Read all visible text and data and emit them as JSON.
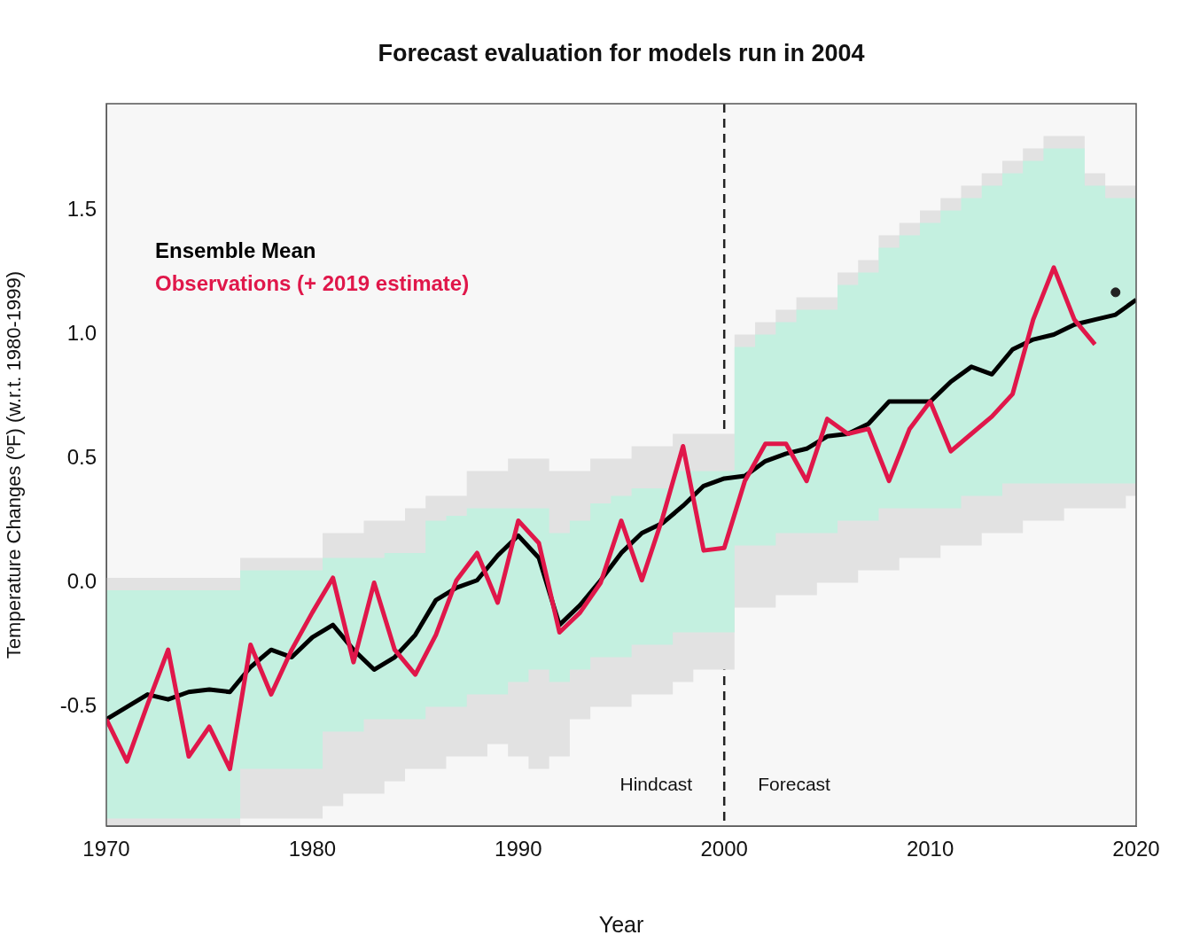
{
  "chart_data": {
    "type": "line",
    "title": "Forecast evaluation for models run in 2004",
    "xlabel": "Year",
    "ylabel": "Temperature Changes (ºF) (w.r.t. 1980-1999)",
    "xlim": [
      1970,
      2020
    ],
    "xticks": [
      1970,
      1980,
      1990,
      2000,
      2010,
      2020
    ],
    "ylim": [
      -0.98,
      1.93
    ],
    "yticks": [
      {
        "value": -0.5,
        "label": "-0.5"
      },
      {
        "value": 0,
        "label": "0.0"
      },
      0.5,
      {
        "value": 1,
        "label": "1.0"
      },
      1.5
    ],
    "grid": false,
    "legend": "top left",
    "marker": "none",
    "line_style": "solid",
    "series": [
      {
        "color": "#e2e2e2",
        "x": [
          1970,
          1971,
          1972,
          1973,
          1974,
          1975,
          1976,
          1977,
          1978,
          1979,
          1980,
          1981,
          1982,
          1983,
          1984,
          1985,
          1986,
          1987,
          1988,
          1989,
          1990,
          1991,
          1992,
          1993,
          1994,
          1995,
          1996,
          1997,
          1998,
          1999,
          2000,
          2001,
          2002,
          2003,
          2004,
          2005,
          2006,
          2007,
          2008,
          2009,
          2010,
          2011,
          2012,
          2013,
          2014,
          2015,
          2016,
          2017,
          2018,
          2019,
          2020
        ],
        "values": [
          null,
          null,
          null,
          null,
          null,
          null,
          null,
          null,
          null,
          null,
          null,
          null,
          null,
          null,
          null,
          null,
          null,
          null,
          null,
          null,
          null,
          null,
          null,
          null,
          null,
          null,
          null,
          null,
          null,
          null,
          null,
          null,
          null,
          null,
          null,
          null,
          null,
          null,
          null,
          null,
          null,
          null,
          null,
          null,
          null,
          null,
          null,
          null,
          null,
          null,
          null
        ],
        "lower": [
          -0.98,
          -0.98,
          -0.98,
          -0.98,
          -0.98,
          -0.98,
          -0.98,
          -0.95,
          -0.95,
          -0.95,
          -0.95,
          -0.9,
          -0.85,
          -0.85,
          -0.8,
          -0.75,
          -0.75,
          -0.7,
          -0.7,
          -0.65,
          -0.7,
          -0.75,
          -0.7,
          -0.55,
          -0.5,
          -0.5,
          -0.45,
          -0.45,
          -0.4,
          -0.35,
          -0.35,
          -0.1,
          -0.1,
          -0.05,
          -0.05,
          0.0,
          0.0,
          0.05,
          0.05,
          0.1,
          0.1,
          0.15,
          0.15,
          0.2,
          0.2,
          0.25,
          0.25,
          0.3,
          0.3,
          0.3,
          0.35
        ],
        "upper": [
          0.02,
          0.02,
          0.02,
          0.02,
          0.02,
          0.02,
          0.02,
          0.1,
          0.1,
          0.1,
          0.1,
          0.2,
          0.2,
          0.25,
          0.25,
          0.3,
          0.35,
          0.35,
          0.45,
          0.45,
          0.5,
          0.5,
          0.45,
          0.45,
          0.5,
          0.5,
          0.55,
          0.55,
          0.6,
          0.6,
          0.6,
          1.0,
          1.05,
          1.1,
          1.15,
          1.15,
          1.25,
          1.3,
          1.4,
          1.45,
          1.5,
          1.55,
          1.6,
          1.65,
          1.7,
          1.75,
          1.8,
          1.8,
          1.65,
          1.6,
          1.6
        ]
      },
      {
        "name": "Ensemble Mean",
        "color": "#000000",
        "x": [
          1970,
          1971,
          1972,
          1973,
          1974,
          1975,
          1976,
          1977,
          1978,
          1979,
          1980,
          1981,
          1982,
          1983,
          1984,
          1985,
          1986,
          1987,
          1988,
          1989,
          1990,
          1991,
          1992,
          1993,
          1994,
          1995,
          1996,
          1997,
          1998,
          1999,
          2000,
          2001,
          2002,
          2003,
          2004,
          2005,
          2006,
          2007,
          2008,
          2009,
          2010,
          2011,
          2012,
          2013,
          2014,
          2015,
          2016,
          2017,
          2018,
          2019,
          2020
        ],
        "values": [
          -0.55,
          -0.5,
          -0.45,
          -0.47,
          -0.44,
          -0.43,
          -0.44,
          -0.34,
          -0.27,
          -0.3,
          -0.22,
          -0.17,
          -0.27,
          -0.35,
          -0.3,
          -0.21,
          -0.07,
          -0.02,
          0.01,
          0.11,
          0.19,
          0.1,
          -0.17,
          -0.09,
          0.01,
          0.12,
          0.2,
          0.24,
          0.31,
          0.39,
          0.42,
          0.43,
          0.49,
          0.52,
          0.54,
          0.59,
          0.6,
          0.64,
          0.73,
          0.73,
          0.73,
          0.81,
          0.87,
          0.84,
          0.94,
          0.98,
          1.0,
          1.04,
          1.06,
          1.08,
          1.14
        ],
        "lower": [
          -0.95,
          -0.95,
          -0.95,
          -0.95,
          -0.95,
          -0.95,
          -0.95,
          -0.75,
          -0.75,
          -0.75,
          -0.75,
          -0.6,
          -0.6,
          -0.55,
          -0.55,
          -0.55,
          -0.5,
          -0.5,
          -0.45,
          -0.45,
          -0.4,
          -0.35,
          -0.4,
          -0.35,
          -0.3,
          -0.3,
          -0.25,
          -0.25,
          -0.2,
          -0.2,
          -0.2,
          0.15,
          0.15,
          0.2,
          0.2,
          0.2,
          0.25,
          0.25,
          0.3,
          0.3,
          0.3,
          0.3,
          0.35,
          0.35,
          0.4,
          0.4,
          0.4,
          0.4,
          0.4,
          0.4,
          0.4
        ],
        "upper": [
          -0.03,
          -0.03,
          -0.03,
          -0.03,
          -0.03,
          -0.03,
          -0.03,
          0.05,
          0.05,
          0.05,
          0.05,
          0.1,
          0.1,
          0.1,
          0.12,
          0.12,
          0.25,
          0.27,
          0.3,
          0.3,
          0.3,
          0.3,
          0.2,
          0.25,
          0.32,
          0.35,
          0.38,
          0.38,
          0.45,
          0.45,
          0.45,
          0.95,
          1.0,
          1.05,
          1.1,
          1.1,
          1.2,
          1.25,
          1.35,
          1.4,
          1.45,
          1.5,
          1.55,
          1.6,
          1.65,
          1.7,
          1.75,
          1.75,
          1.6,
          1.55,
          1.55
        ]
      },
      {
        "name": "Observations (+ 2019 estimate)",
        "color": "#e0174a",
        "x": [
          1970,
          1971,
          1972,
          1973,
          1974,
          1975,
          1976,
          1977,
          1978,
          1979,
          1980,
          1981,
          1982,
          1983,
          1984,
          1985,
          1986,
          1987,
          1988,
          1989,
          1990,
          1991,
          1992,
          1993,
          1994,
          1995,
          1996,
          1997,
          1998,
          1999,
          2000,
          2001,
          2002,
          2003,
          2004,
          2005,
          2006,
          2007,
          2008,
          2009,
          2010,
          2011,
          2012,
          2013,
          2014,
          2015,
          2016,
          2017,
          2018
        ],
        "values": [
          -0.55,
          -0.72,
          -0.49,
          -0.27,
          -0.7,
          -0.58,
          -0.75,
          -0.25,
          -0.45,
          -0.27,
          -0.12,
          0.02,
          -0.32,
          0.0,
          -0.27,
          -0.37,
          -0.21,
          0.01,
          0.12,
          -0.08,
          0.25,
          0.16,
          -0.2,
          -0.12,
          0.0,
          0.25,
          0.01,
          0.26,
          0.55,
          0.13,
          0.14,
          0.41,
          0.56,
          0.56,
          0.41,
          0.66,
          0.6,
          0.62,
          0.41,
          0.62,
          0.73,
          0.53,
          0.6,
          0.67,
          0.76,
          1.06,
          1.27,
          1.06,
          0.96
        ]
      },
      {
        "type": "scatter",
        "marker": "circle",
        "color": "#222222",
        "x": [
          2019
        ],
        "values": [
          1.17
        ]
      }
    ],
    "ref_lines": [
      {
        "axis": "x",
        "value": 2000,
        "color": "#222222",
        "line_style": "dashed"
      }
    ],
    "annotations": [
      "Hindcast",
      "Forecast"
    ]
  }
}
